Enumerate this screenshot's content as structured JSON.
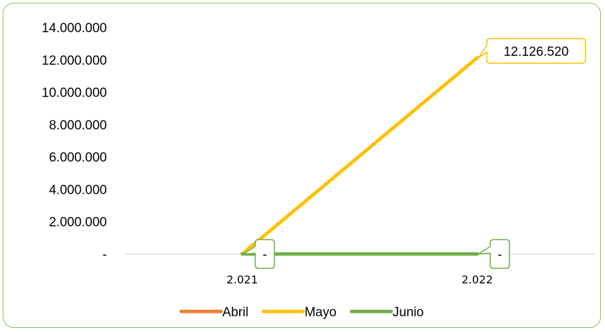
{
  "chart_data": {
    "type": "line",
    "title": "",
    "xlabel": "",
    "ylabel": "",
    "categories": [
      "2.021",
      "2.022"
    ],
    "ylim": [
      0,
      14000000
    ],
    "yticks": [
      {
        "value": 0,
        "label": "-"
      },
      {
        "value": 2000000,
        "label": "2.000.000"
      },
      {
        "value": 4000000,
        "label": "4.000.000"
      },
      {
        "value": 6000000,
        "label": "6.000.000"
      },
      {
        "value": 8000000,
        "label": "8.000.000"
      },
      {
        "value": 10000000,
        "label": "10.000.000"
      },
      {
        "value": 12000000,
        "label": "12.000.000"
      },
      {
        "value": 14000000,
        "label": "14.000.000"
      }
    ],
    "grid": false,
    "legend_position": "bottom",
    "series": [
      {
        "name": "Abril",
        "color": "#ed7d31",
        "values": [
          0,
          0
        ],
        "data_labels": [
          null,
          null
        ]
      },
      {
        "name": "Mayo",
        "color": "#ffc000",
        "values": [
          0,
          12126520
        ],
        "data_labels": [
          null,
          "12.126.520"
        ]
      },
      {
        "name": "Junio",
        "color": "#70ad47",
        "values": [
          0,
          0
        ],
        "data_labels": [
          "-",
          "-"
        ]
      }
    ]
  }
}
